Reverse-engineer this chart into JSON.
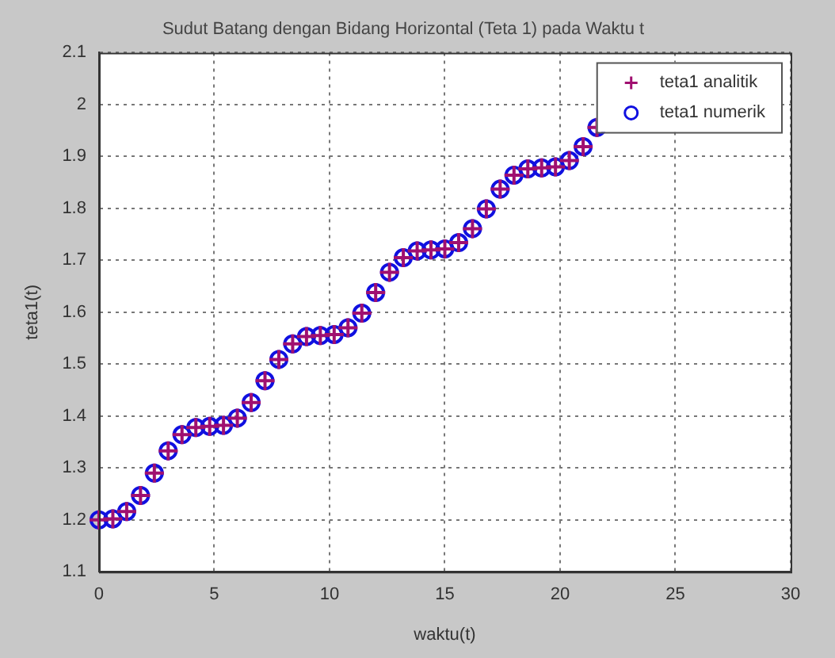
{
  "chart_data": {
    "type": "scatter",
    "title": "Sudut Batang dengan Bidang Horizontal (Teta 1) pada Waktu t",
    "xlabel": "waktu(t)",
    "ylabel": "teta1(t)",
    "x": [
      0,
      0.6,
      1.2,
      1.8,
      2.4,
      3.0,
      3.6,
      4.2,
      4.8,
      5.4,
      6.0,
      6.6,
      7.2,
      7.8,
      8.4,
      9.0,
      9.6,
      10.2,
      10.8,
      11.4,
      12.0,
      12.6,
      13.2,
      13.8,
      14.4,
      15.0,
      15.6,
      16.2,
      16.8,
      17.4,
      18.0,
      18.6,
      19.2,
      19.8,
      20.4,
      21.0,
      21.6
    ],
    "series": [
      {
        "name": "teta1 analitik",
        "color": "#a01070",
        "marker": "cross",
        "values": [
          1.2,
          1.202,
          1.216,
          1.247,
          1.29,
          1.333,
          1.364,
          1.378,
          1.38,
          1.382,
          1.396,
          1.426,
          1.468,
          1.509,
          1.539,
          1.553,
          1.555,
          1.557,
          1.57,
          1.598,
          1.638,
          1.677,
          1.705,
          1.718,
          1.72,
          1.722,
          1.734,
          1.761,
          1.799,
          1.837,
          1.864,
          1.876,
          1.878,
          1.88,
          1.892,
          1.919,
          1.956
        ]
      },
      {
        "name": "teta1 numerik",
        "color": "#1010e0",
        "marker": "circle",
        "values": [
          1.2,
          1.202,
          1.216,
          1.247,
          1.29,
          1.333,
          1.364,
          1.378,
          1.38,
          1.382,
          1.396,
          1.426,
          1.468,
          1.509,
          1.539,
          1.553,
          1.555,
          1.557,
          1.57,
          1.598,
          1.638,
          1.677,
          1.705,
          1.718,
          1.72,
          1.722,
          1.734,
          1.761,
          1.799,
          1.837,
          1.864,
          1.876,
          1.878,
          1.88,
          1.892,
          1.919,
          1.956
        ]
      }
    ],
    "xlim": [
      0,
      30
    ],
    "xticks": [
      0,
      5,
      10,
      15,
      20,
      25,
      30
    ],
    "ylim": [
      1.1,
      2.1
    ],
    "yticks": [
      1.1,
      1.2,
      1.3,
      1.4,
      1.5,
      1.6,
      1.7,
      1.8,
      1.9,
      2,
      2.1
    ],
    "grid": true,
    "legend": "top right"
  }
}
